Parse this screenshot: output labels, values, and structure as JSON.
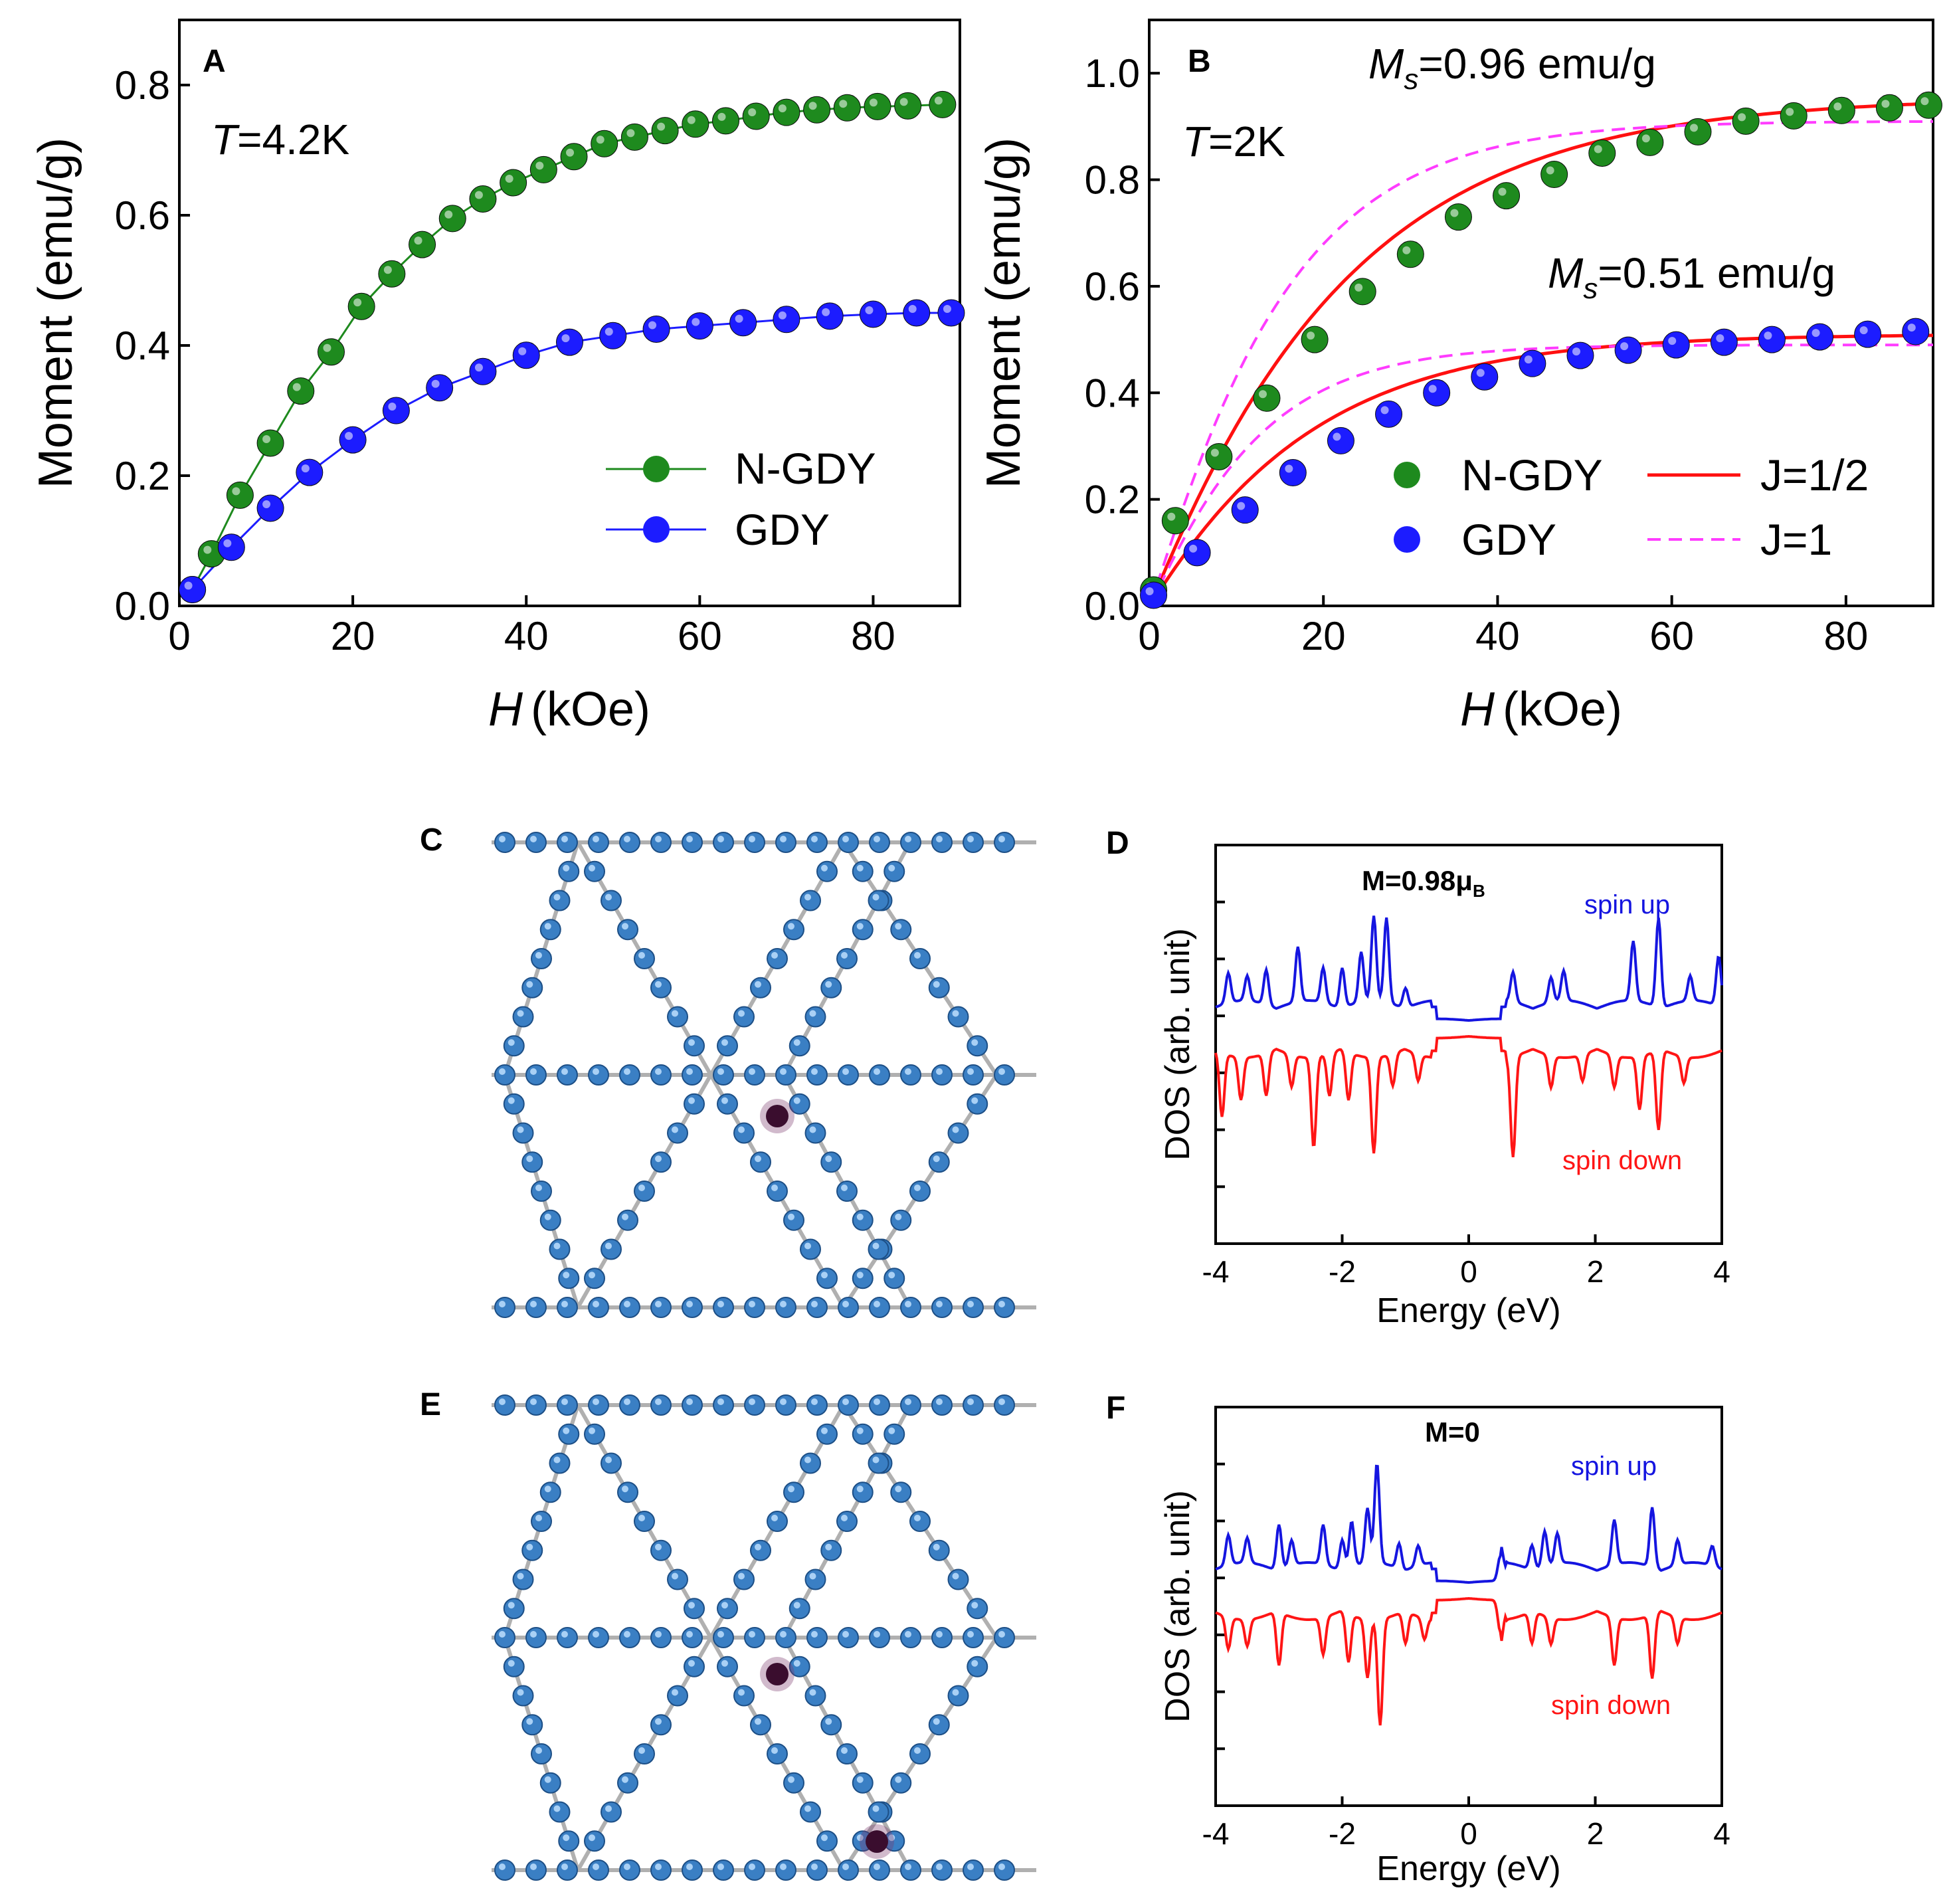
{
  "chart_data": [
    {
      "panel": "A",
      "type": "scatter",
      "xlabel_sym": "H",
      "xlabel_unit": "(kOe)",
      "ylabel": "Moment (emu/g)",
      "xlim": [
        0,
        90
      ],
      "ylim": [
        0,
        0.9
      ],
      "xticks": [
        "0",
        "20",
        "40",
        "60",
        "80"
      ],
      "yticks": [
        "0.0",
        "0.2",
        "0.4",
        "0.6",
        "0.8"
      ],
      "temp_sym": "T",
      "temp_val": "=4.2K",
      "series": [
        {
          "name": "N-GDY",
          "color": "#1e8a1e",
          "x": [
            1.5,
            3.7,
            7,
            10.5,
            14,
            17.5,
            21,
            24.5,
            28,
            31.5,
            35,
            38.5,
            42,
            45.5,
            49,
            52.5,
            56,
            59.5,
            63,
            66.5,
            70,
            73.5,
            77,
            80.5,
            84,
            88
          ],
          "y": [
            0.025,
            0.08,
            0.17,
            0.25,
            0.33,
            0.39,
            0.46,
            0.51,
            0.555,
            0.595,
            0.625,
            0.65,
            0.67,
            0.69,
            0.71,
            0.72,
            0.73,
            0.74,
            0.745,
            0.752,
            0.758,
            0.762,
            0.765,
            0.767,
            0.768,
            0.77
          ]
        },
        {
          "name": "GDY",
          "color": "#1c1cff",
          "x": [
            1.5,
            6,
            10.5,
            15,
            20,
            25,
            30,
            35,
            40,
            45,
            50,
            55,
            60,
            65,
            70,
            75,
            80,
            85,
            89
          ],
          "y": [
            0.025,
            0.09,
            0.15,
            0.205,
            0.255,
            0.3,
            0.335,
            0.36,
            0.385,
            0.405,
            0.415,
            0.425,
            0.43,
            0.435,
            0.44,
            0.445,
            0.448,
            0.45,
            0.45
          ]
        }
      ]
    },
    {
      "panel": "B",
      "type": "scatter",
      "xlabel_sym": "H",
      "xlabel_unit": "(kOe)",
      "ylabel": "Moment (emu/g)",
      "xlim": [
        0,
        90
      ],
      "ylim": [
        0,
        1.1
      ],
      "xticks": [
        "0",
        "20",
        "40",
        "60",
        "80"
      ],
      "yticks": [
        "0.0",
        "0.2",
        "0.4",
        "0.6",
        "0.8",
        "1.0"
      ],
      "temp_sym": "T",
      "temp_val": "=2K",
      "ms_sym": "M",
      "ms_sub": "s",
      "ms_ngdy": "=0.96 emu/g",
      "ms_gdy": "=0.51 emu/g",
      "series": [
        {
          "name": "N-GDY",
          "color": "#1e8a1e",
          "x": [
            0.5,
            3,
            8,
            13.5,
            19,
            24.5,
            30,
            35.5,
            41,
            46.5,
            52,
            57.5,
            63,
            68.5,
            74,
            79.5,
            85,
            89.5
          ],
          "y": [
            0.03,
            0.16,
            0.28,
            0.39,
            0.5,
            0.59,
            0.66,
            0.73,
            0.77,
            0.81,
            0.85,
            0.87,
            0.89,
            0.91,
            0.92,
            0.93,
            0.935,
            0.94
          ]
        },
        {
          "name": "GDY",
          "color": "#1c1cff",
          "x": [
            0.5,
            5.5,
            11,
            16.5,
            22,
            27.5,
            33,
            38.5,
            44,
            49.5,
            55,
            60.5,
            66,
            71.5,
            77,
            82.5,
            88
          ],
          "y": [
            0.02,
            0.1,
            0.18,
            0.25,
            0.31,
            0.36,
            0.4,
            0.43,
            0.455,
            0.47,
            0.48,
            0.49,
            0.495,
            0.5,
            0.505,
            0.51,
            0.515
          ]
        }
      ],
      "fits": [
        {
          "name": "J=1/2",
          "style": "solid",
          "color": "#ff1010"
        },
        {
          "name": "J=1",
          "style": "dashed",
          "color": "#ff3cff"
        }
      ]
    },
    {
      "panel": "D",
      "type": "line",
      "xlabel": "Energy (eV)",
      "ylabel": "DOS (arb. unit)",
      "xlim": [
        -4,
        4
      ],
      "xticks": [
        "-4",
        "-2",
        "0",
        "2",
        "4"
      ],
      "moment_prefix": "M=0.98μ",
      "moment_sub": "B",
      "spin_up": "spin up",
      "spin_down": "spin down",
      "peaks_up": [
        [
          -3.8,
          0.3
        ],
        [
          -3.5,
          0.25
        ],
        [
          -3.2,
          0.35
        ],
        [
          -2.7,
          0.55
        ],
        [
          -2.3,
          0.35
        ],
        [
          -2.0,
          0.4
        ],
        [
          -1.7,
          0.5
        ],
        [
          -1.5,
          0.85
        ],
        [
          -1.3,
          0.85
        ],
        [
          -1.0,
          0.2
        ],
        [
          0.7,
          0.3
        ],
        [
          1.3,
          0.25
        ],
        [
          1.5,
          0.3
        ],
        [
          2.6,
          0.6
        ],
        [
          3.0,
          0.9
        ],
        [
          3.5,
          0.25
        ],
        [
          3.95,
          0.5
        ]
      ],
      "peaks_down": [
        [
          -3.9,
          0.6
        ],
        [
          -3.6,
          0.4
        ],
        [
          -3.2,
          0.4
        ],
        [
          -2.8,
          0.3
        ],
        [
          -2.45,
          0.85
        ],
        [
          -2.2,
          0.4
        ],
        [
          -1.9,
          0.45
        ],
        [
          -1.5,
          0.9
        ],
        [
          -1.2,
          0.3
        ],
        [
          -0.8,
          0.25
        ],
        [
          0.7,
          0.95
        ],
        [
          1.3,
          0.3
        ],
        [
          1.8,
          0.25
        ],
        [
          2.3,
          0.3
        ],
        [
          2.7,
          0.5
        ],
        [
          3.0,
          0.75
        ],
        [
          3.4,
          0.25
        ]
      ]
    },
    {
      "panel": "F",
      "type": "line",
      "xlabel": "Energy (eV)",
      "ylabel": "DOS (arb. unit)",
      "xlim": [
        -4,
        4
      ],
      "xticks": [
        "-4",
        "-2",
        "0",
        "2",
        "4"
      ],
      "moment_prefix": "M=0",
      "moment_sub": "",
      "spin_up": "spin up",
      "spin_down": "spin down",
      "peaks_up": [
        [
          -3.8,
          0.3
        ],
        [
          -3.5,
          0.25
        ],
        [
          -3.0,
          0.45
        ],
        [
          -2.8,
          0.25
        ],
        [
          -2.3,
          0.4
        ],
        [
          -2.0,
          0.3
        ],
        [
          -1.85,
          0.45
        ],
        [
          -1.6,
          0.55
        ],
        [
          -1.45,
          1.0
        ],
        [
          -1.1,
          0.25
        ],
        [
          -0.8,
          0.2
        ],
        [
          0.5,
          0.25
        ],
        [
          1.0,
          0.25
        ],
        [
          1.2,
          0.35
        ],
        [
          1.4,
          0.3
        ],
        [
          2.3,
          0.45
        ],
        [
          2.9,
          0.6
        ],
        [
          3.3,
          0.25
        ],
        [
          3.85,
          0.2
        ]
      ],
      "peaks_down": [
        [
          -3.8,
          0.3
        ],
        [
          -3.5,
          0.25
        ],
        [
          -3.0,
          0.5
        ],
        [
          -2.3,
          0.35
        ],
        [
          -1.9,
          0.45
        ],
        [
          -1.6,
          0.55
        ],
        [
          -1.4,
          1.0
        ],
        [
          -1.0,
          0.3
        ],
        [
          -0.7,
          0.2
        ],
        [
          0.5,
          0.3
        ],
        [
          1.0,
          0.3
        ],
        [
          1.3,
          0.25
        ],
        [
          2.3,
          0.45
        ],
        [
          2.9,
          0.6
        ],
        [
          3.3,
          0.25
        ]
      ]
    }
  ],
  "panel_c_label": "C",
  "panel_e_label": "E"
}
